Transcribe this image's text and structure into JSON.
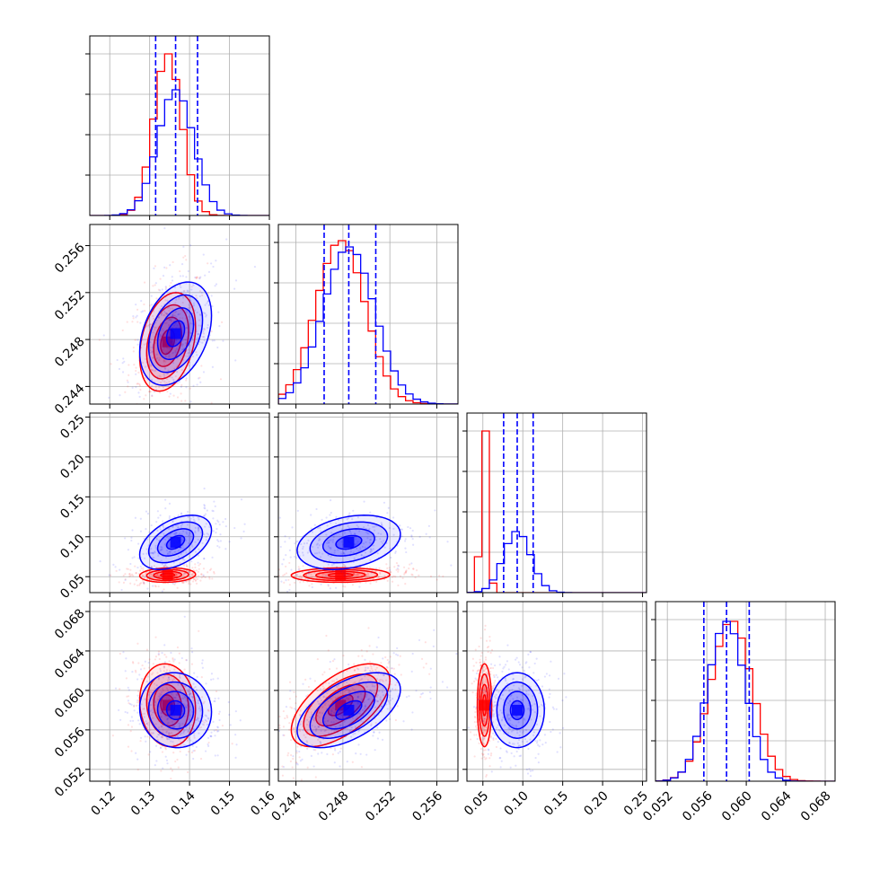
{
  "chart_data": {
    "type": "corner",
    "parameters": [
      {
        "ticks": [
          0.12,
          0.13,
          0.14,
          0.15,
          0.16
        ],
        "tick_labels": [
          "0.12",
          "0.13",
          "0.14",
          "0.15",
          "0.16"
        ],
        "range": [
          0.115,
          0.16
        ]
      },
      {
        "ticks": [
          0.244,
          0.248,
          0.252,
          0.256
        ],
        "tick_labels": [
          "0.244",
          "0.248",
          "0.252",
          "0.256"
        ],
        "range": [
          0.2425,
          0.2578
        ]
      },
      {
        "ticks": [
          0.05,
          0.1,
          0.15,
          0.2,
          0.25
        ],
        "tick_labels": [
          "0.05",
          "0.10",
          "0.15",
          "0.20",
          "0.25"
        ],
        "range": [
          0.03,
          0.255
        ]
      },
      {
        "ticks": [
          0.052,
          0.056,
          0.06,
          0.064,
          0.068
        ],
        "tick_labels": [
          "0.052",
          "0.056",
          "0.060",
          "0.064",
          "0.068"
        ],
        "range": [
          0.0508,
          0.069
        ]
      }
    ],
    "series": [
      {
        "color": "#ff0000",
        "means": [
          0.1345,
          0.2478,
          0.052,
          0.0585
        ],
        "sigmas": [
          0.0035,
          0.0021,
          0.0045,
          0.0021
        ],
        "correlations": [
          {
            "i": 1,
            "j": 0,
            "rho": 0.3
          },
          {
            "i": 2,
            "j": 0,
            "rho": 0.1
          },
          {
            "i": 2,
            "j": 1,
            "rho": 0.05
          },
          {
            "i": 3,
            "j": 0,
            "rho": -0.1
          },
          {
            "i": 3,
            "j": 1,
            "rho": 0.6
          },
          {
            "i": 3,
            "j": 2,
            "rho": 0.0
          }
        ]
      },
      {
        "color": "#0000ff",
        "means": [
          0.1365,
          0.2485,
          0.093,
          0.058
        ],
        "sigmas": [
          0.0045,
          0.0022,
          0.017,
          0.0019
        ],
        "correlations": [
          {
            "i": 1,
            "j": 0,
            "rho": 0.35
          },
          {
            "i": 2,
            "j": 0,
            "rho": 0.45
          },
          {
            "i": 2,
            "j": 1,
            "rho": 0.3
          },
          {
            "i": 3,
            "j": 0,
            "rho": -0.05
          },
          {
            "i": 3,
            "j": 1,
            "rho": 0.55
          },
          {
            "i": 3,
            "j": 2,
            "rho": 0.0
          }
        ]
      }
    ],
    "quantile_lines": {
      "color": "#0000ff",
      "style": "dashed",
      "values": [
        [
          0.1315,
          0.1365,
          0.142
        ],
        [
          0.2464,
          0.2485,
          0.2508
        ],
        [
          0.076,
          0.093,
          0.113
        ],
        [
          0.0557,
          0.058,
          0.0603
        ]
      ]
    },
    "histogram_yticks": 4,
    "grid": true
  }
}
